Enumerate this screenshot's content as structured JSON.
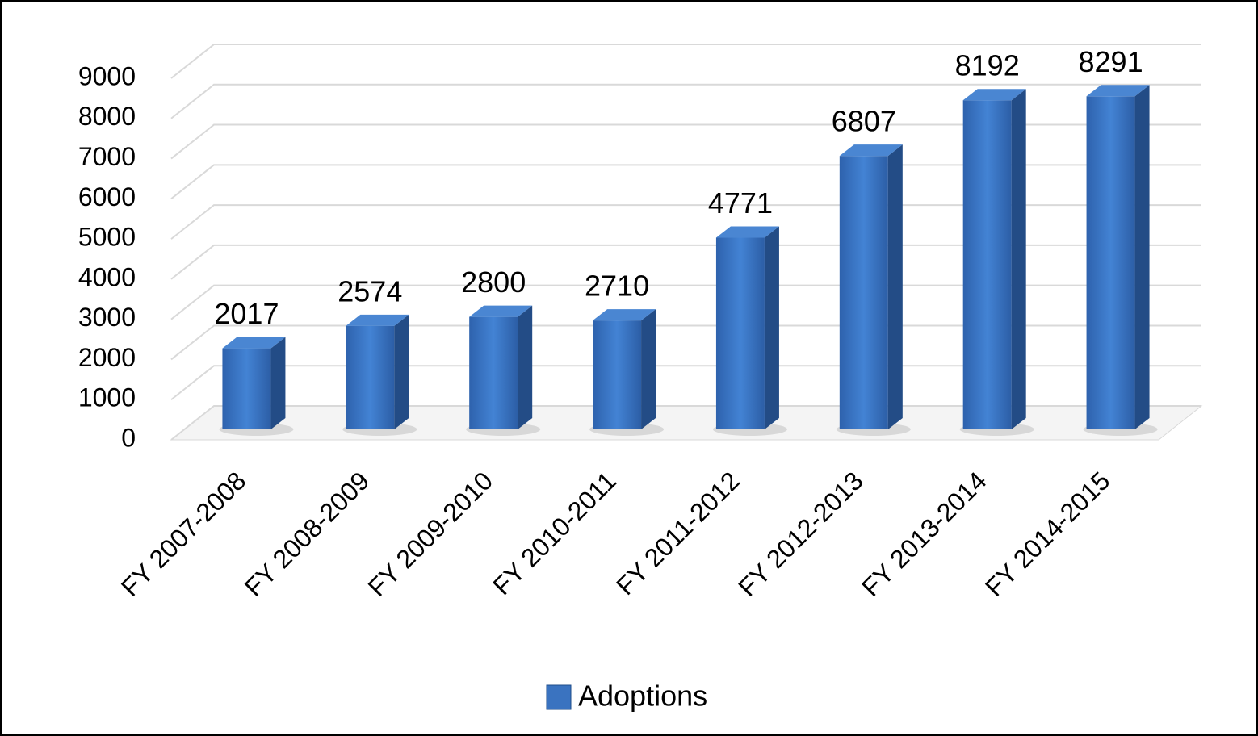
{
  "chart_data": {
    "type": "bar3d",
    "categories": [
      "FY 2007-2008",
      "FY 2008-2009",
      "FY 2009-2010",
      "FY 2010-2011",
      "FY 2011-2012",
      "FY 2012-2013",
      "FY 2013-2014",
      "FY 2014-2015"
    ],
    "series": [
      {
        "name": "Adoptions",
        "color": "#3a73c0",
        "values": [
          2017,
          2574,
          2800,
          2710,
          4771,
          6807,
          8192,
          8291
        ]
      }
    ],
    "ylim": [
      0,
      9000
    ],
    "yticks": [
      0,
      1000,
      2000,
      3000,
      4000,
      5000,
      6000,
      7000,
      8000,
      9000
    ],
    "grid": true,
    "legend": "bottom"
  }
}
